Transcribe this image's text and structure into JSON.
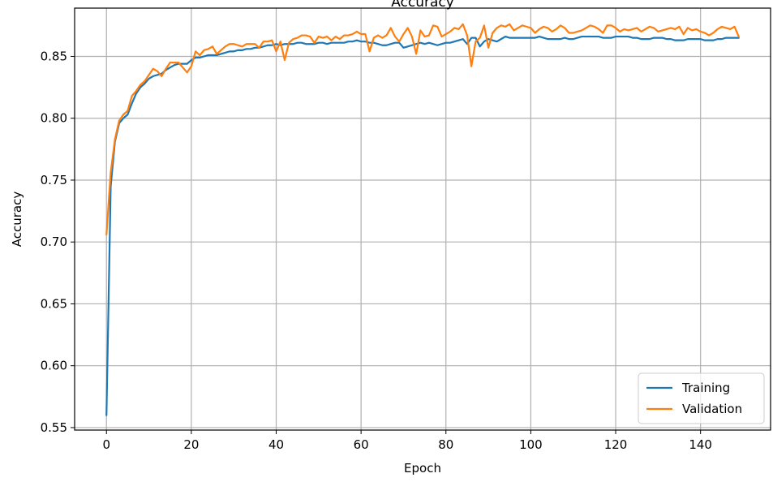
{
  "chart_data": {
    "type": "line",
    "title": "Accuracy",
    "xlabel": "Epoch",
    "ylabel": "Accuracy",
    "xlim": [
      -7.5,
      156.5
    ],
    "ylim": [
      0.548,
      0.889
    ],
    "xticks": [
      0,
      20,
      40,
      60,
      80,
      100,
      120,
      140
    ],
    "yticks": [
      0.55,
      0.6,
      0.65,
      0.7,
      0.75,
      0.8,
      0.85
    ],
    "xtick_labels": [
      "0",
      "20",
      "40",
      "60",
      "80",
      "100",
      "120",
      "140"
    ],
    "ytick_labels": [
      "0.55",
      "0.60",
      "0.65",
      "0.70",
      "0.75",
      "0.80",
      "0.85"
    ],
    "grid": true,
    "legend_position": "lower-right",
    "series": [
      {
        "name": "Training",
        "color": "#1f77b4",
        "x": [
          0,
          1,
          2,
          3,
          4,
          5,
          6,
          7,
          8,
          9,
          10,
          11,
          12,
          13,
          14,
          15,
          16,
          17,
          18,
          19,
          20,
          21,
          22,
          23,
          24,
          25,
          26,
          27,
          28,
          29,
          30,
          31,
          32,
          33,
          34,
          35,
          36,
          37,
          38,
          39,
          40,
          41,
          42,
          43,
          44,
          45,
          46,
          47,
          48,
          49,
          50,
          51,
          52,
          53,
          54,
          55,
          56,
          57,
          58,
          59,
          60,
          61,
          62,
          63,
          64,
          65,
          66,
          67,
          68,
          69,
          70,
          71,
          72,
          73,
          74,
          75,
          76,
          77,
          78,
          79,
          80,
          81,
          82,
          83,
          84,
          85,
          86,
          87,
          88,
          89,
          90,
          91,
          92,
          93,
          94,
          95,
          96,
          97,
          98,
          99,
          100,
          101,
          102,
          103,
          104,
          105,
          106,
          107,
          108,
          109,
          110,
          111,
          112,
          113,
          114,
          115,
          116,
          117,
          118,
          119,
          120,
          121,
          122,
          123,
          124,
          125,
          126,
          127,
          128,
          129,
          130,
          131,
          132,
          133,
          134,
          135,
          136,
          137,
          138,
          139,
          140,
          141,
          142,
          143,
          144,
          145,
          146,
          147,
          148,
          149
        ],
        "y": [
          0.56,
          0.745,
          0.781,
          0.796,
          0.8,
          0.803,
          0.812,
          0.82,
          0.825,
          0.828,
          0.832,
          0.834,
          0.835,
          0.836,
          0.839,
          0.841,
          0.843,
          0.844,
          0.844,
          0.844,
          0.847,
          0.849,
          0.849,
          0.85,
          0.851,
          0.851,
          0.851,
          0.852,
          0.853,
          0.854,
          0.854,
          0.855,
          0.855,
          0.856,
          0.856,
          0.857,
          0.857,
          0.858,
          0.859,
          0.859,
          0.86,
          0.859,
          0.86,
          0.86,
          0.86,
          0.861,
          0.861,
          0.86,
          0.86,
          0.86,
          0.861,
          0.861,
          0.86,
          0.861,
          0.861,
          0.861,
          0.861,
          0.862,
          0.862,
          0.863,
          0.862,
          0.862,
          0.861,
          0.861,
          0.86,
          0.859,
          0.859,
          0.86,
          0.861,
          0.861,
          0.857,
          0.858,
          0.859,
          0.86,
          0.861,
          0.86,
          0.861,
          0.86,
          0.859,
          0.86,
          0.861,
          0.861,
          0.862,
          0.863,
          0.864,
          0.86,
          0.865,
          0.865,
          0.858,
          0.862,
          0.864,
          0.863,
          0.862,
          0.864,
          0.866,
          0.865,
          0.865,
          0.865,
          0.865,
          0.865,
          0.865,
          0.865,
          0.866,
          0.865,
          0.864,
          0.864,
          0.864,
          0.864,
          0.865,
          0.864,
          0.864,
          0.865,
          0.866,
          0.866,
          0.866,
          0.866,
          0.866,
          0.865,
          0.865,
          0.865,
          0.866,
          0.866,
          0.866,
          0.866,
          0.865,
          0.865,
          0.864,
          0.864,
          0.864,
          0.865,
          0.865,
          0.865,
          0.864,
          0.864,
          0.863,
          0.863,
          0.863,
          0.864,
          0.864,
          0.864,
          0.864,
          0.863,
          0.863,
          0.863,
          0.864,
          0.864,
          0.865,
          0.865,
          0.865,
          0.865
        ]
      },
      {
        "name": "Validation",
        "color": "#ff7f0e",
        "x": [
          0,
          1,
          2,
          3,
          4,
          5,
          6,
          7,
          8,
          9,
          10,
          11,
          12,
          13,
          14,
          15,
          16,
          17,
          18,
          19,
          20,
          21,
          22,
          23,
          24,
          25,
          26,
          27,
          28,
          29,
          30,
          31,
          32,
          33,
          34,
          35,
          36,
          37,
          38,
          39,
          40,
          41,
          42,
          43,
          44,
          45,
          46,
          47,
          48,
          49,
          50,
          51,
          52,
          53,
          54,
          55,
          56,
          57,
          58,
          59,
          60,
          61,
          62,
          63,
          64,
          65,
          66,
          67,
          68,
          69,
          70,
          71,
          72,
          73,
          74,
          75,
          76,
          77,
          78,
          79,
          80,
          81,
          82,
          83,
          84,
          85,
          86,
          87,
          88,
          89,
          90,
          91,
          92,
          93,
          94,
          95,
          96,
          97,
          98,
          99,
          100,
          101,
          102,
          103,
          104,
          105,
          106,
          107,
          108,
          109,
          110,
          111,
          112,
          113,
          114,
          115,
          116,
          117,
          118,
          119,
          120,
          121,
          122,
          123,
          124,
          125,
          126,
          127,
          128,
          129,
          130,
          131,
          132,
          133,
          134,
          135,
          136,
          137,
          138,
          139,
          140,
          141,
          142,
          143,
          144,
          145,
          146,
          147,
          148,
          149
        ],
        "y": [
          0.706,
          0.756,
          0.783,
          0.798,
          0.803,
          0.806,
          0.818,
          0.822,
          0.827,
          0.83,
          0.835,
          0.84,
          0.838,
          0.834,
          0.84,
          0.845,
          0.845,
          0.845,
          0.841,
          0.837,
          0.842,
          0.854,
          0.851,
          0.855,
          0.856,
          0.858,
          0.852,
          0.855,
          0.858,
          0.86,
          0.86,
          0.859,
          0.858,
          0.86,
          0.86,
          0.86,
          0.857,
          0.862,
          0.862,
          0.863,
          0.854,
          0.862,
          0.847,
          0.861,
          0.864,
          0.865,
          0.867,
          0.867,
          0.866,
          0.861,
          0.866,
          0.865,
          0.866,
          0.863,
          0.866,
          0.864,
          0.867,
          0.867,
          0.868,
          0.87,
          0.868,
          0.868,
          0.854,
          0.865,
          0.867,
          0.865,
          0.867,
          0.873,
          0.866,
          0.862,
          0.868,
          0.873,
          0.866,
          0.852,
          0.871,
          0.866,
          0.867,
          0.875,
          0.874,
          0.866,
          0.868,
          0.87,
          0.873,
          0.872,
          0.876,
          0.867,
          0.842,
          0.862,
          0.865,
          0.875,
          0.857,
          0.869,
          0.873,
          0.875,
          0.874,
          0.876,
          0.871,
          0.873,
          0.875,
          0.874,
          0.873,
          0.869,
          0.872,
          0.874,
          0.873,
          0.87,
          0.872,
          0.875,
          0.873,
          0.869,
          0.869,
          0.87,
          0.871,
          0.873,
          0.875,
          0.874,
          0.872,
          0.869,
          0.875,
          0.875,
          0.873,
          0.87,
          0.872,
          0.871,
          0.872,
          0.873,
          0.87,
          0.872,
          0.874,
          0.873,
          0.87,
          0.871,
          0.872,
          0.873,
          0.872,
          0.874,
          0.868,
          0.873,
          0.871,
          0.872,
          0.87,
          0.869,
          0.867,
          0.869,
          0.872,
          0.874,
          0.873,
          0.872,
          0.874,
          0.866
        ]
      }
    ]
  }
}
